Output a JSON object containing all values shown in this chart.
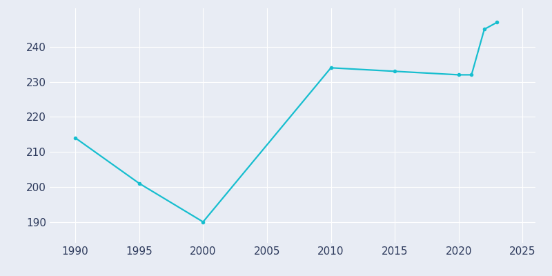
{
  "years": [
    1990,
    1995,
    2000,
    2010,
    2015,
    2020,
    2021,
    2022,
    2023
  ],
  "population": [
    214,
    201,
    190,
    234,
    233,
    232,
    232,
    245,
    247
  ],
  "line_color": "#17BECF",
  "bg_color": "#E8ECF4",
  "grid_color": "#ffffff",
  "tick_color": "#2D3A5C",
  "xlim": [
    1988,
    2026
  ],
  "ylim": [
    184,
    251
  ],
  "xticks": [
    1990,
    1995,
    2000,
    2005,
    2010,
    2015,
    2020,
    2025
  ],
  "yticks": [
    190,
    200,
    210,
    220,
    230,
    240
  ],
  "linewidth": 1.6,
  "tick_labelsize": 11
}
